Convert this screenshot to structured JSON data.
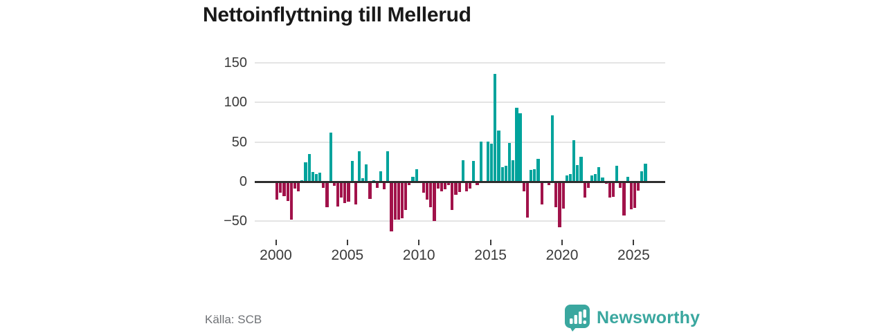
{
  "title": "Nettoinflyttning till Mellerud",
  "source": {
    "label": "Källa: SCB"
  },
  "branding": {
    "name": "Newsworthy",
    "icon": "bar-chart-speech-bubble-icon",
    "color": "#3aa79f"
  },
  "chart_data": {
    "type": "bar",
    "title": "Nettoinflyttning till Mellerud",
    "x_start": "2000-Q1",
    "frequency": "quarterly",
    "values": [
      -23,
      -14,
      -18,
      -24,
      -48,
      -9,
      -12,
      2,
      24,
      35,
      12,
      10,
      11,
      -8,
      -32,
      62,
      -5,
      -31,
      -20,
      -27,
      -25,
      26,
      -29,
      38,
      4,
      22,
      -22,
      2,
      -8,
      13,
      -10,
      38,
      -63,
      -48,
      -48,
      -46,
      -36,
      -4,
      6,
      16,
      -2,
      -14,
      -23,
      -32,
      -50,
      -9,
      -12,
      -10,
      -4,
      -36,
      -17,
      -13,
      27,
      -12,
      -9,
      26,
      -4,
      51,
      0,
      51,
      48,
      136,
      65,
      18,
      20,
      49,
      27,
      93,
      86,
      -12,
      -45,
      15,
      16,
      29,
      -29,
      0,
      -4,
      84,
      -32,
      -58,
      -34,
      8,
      10,
      52,
      21,
      31,
      -20,
      -8,
      8,
      10,
      18,
      5,
      -3,
      -20,
      -19,
      20,
      -8,
      -43,
      6,
      -35,
      -33,
      -11,
      13,
      23
    ],
    "x_tick_years": [
      2000,
      2005,
      2010,
      2015,
      2020,
      2025
    ],
    "x_tick_labels": [
      "2000",
      "2005",
      "2010",
      "2015",
      "2020",
      "2025"
    ],
    "y_ticks": [
      150,
      100,
      50,
      0,
      -50
    ],
    "y_tick_labels": [
      "150",
      "100",
      "50",
      "0",
      "−50"
    ],
    "ylim": [
      -65,
      150
    ],
    "grid": "horizontal",
    "legend": "none",
    "positive_color": "#00a39c",
    "negative_color": "#a1124a"
  }
}
